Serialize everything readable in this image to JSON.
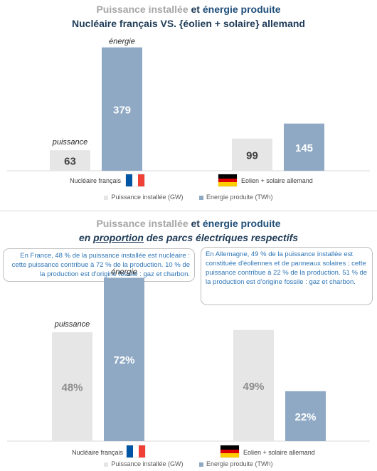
{
  "colors": {
    "installed": "#e6e6e6",
    "energy": "#8fa9c4",
    "title_grey": "#a6a6a6",
    "title_blue": "#1f4e79",
    "note_text": "#2e75b6"
  },
  "top": {
    "title_part1": "Puissance installée",
    "title_part2": " et ",
    "title_part3": "énergie produite",
    "subtitle": "Nucléaire français VS. {éolien + solaire} allemand"
  },
  "bottom": {
    "title_part1": "Puissance installée",
    "title_part2": " et ",
    "title_part3": "énergie produite",
    "subtitle_part1": "en ",
    "subtitle_part2": "proportion",
    "subtitle_part3": " des parcs électriques respectifs",
    "note_fr": "En France, 48 % de la puissance installée est nucléaire : cette puissance contribue à 72 %  de la production. 10 % de la production est d'origine fossile : gaz et charbon.",
    "note_de": "En Allemagne, 49 % de la puissance installée est constituée d'éoliennes et de panneaux solaires ; cette puissance contribue à 22 % de la production. 51 % de la production est d'origine fossile : gaz et charbon."
  },
  "flags": {
    "fr": [
      "#0055a4",
      "#ffffff",
      "#ef4135"
    ],
    "de": [
      "#000000",
      "#dd0000",
      "#ffce00"
    ]
  },
  "chart_data": [
    {
      "type": "bar",
      "categories": [
        "Nucléaire français",
        "Eolien + solaire allemand"
      ],
      "series": [
        {
          "name": "Puissance installée (GW)",
          "values": [
            63,
            99
          ],
          "labels": [
            "63",
            "99"
          ]
        },
        {
          "name": "Energie produite (TWh)",
          "values": [
            379,
            145
          ],
          "labels": [
            "379",
            "145"
          ]
        }
      ],
      "annotations": {
        "installed": "puissance",
        "energy": "énergie"
      },
      "ylim": [
        0,
        400
      ],
      "legend": "bottom"
    },
    {
      "type": "bar",
      "categories": [
        "Nucléaire français",
        "Eolien + solaire allemand"
      ],
      "series": [
        {
          "name": "Puissance installée (GW)",
          "values": [
            48,
            49
          ],
          "labels": [
            "48%",
            "49%"
          ]
        },
        {
          "name": "Energie produite (TWh)",
          "values": [
            72,
            22
          ],
          "labels": [
            "72%",
            "22%"
          ]
        }
      ],
      "annotations": {
        "installed": "puissance",
        "energy": "énergie"
      },
      "ylim": [
        0,
        85
      ],
      "legend": "bottom"
    }
  ]
}
